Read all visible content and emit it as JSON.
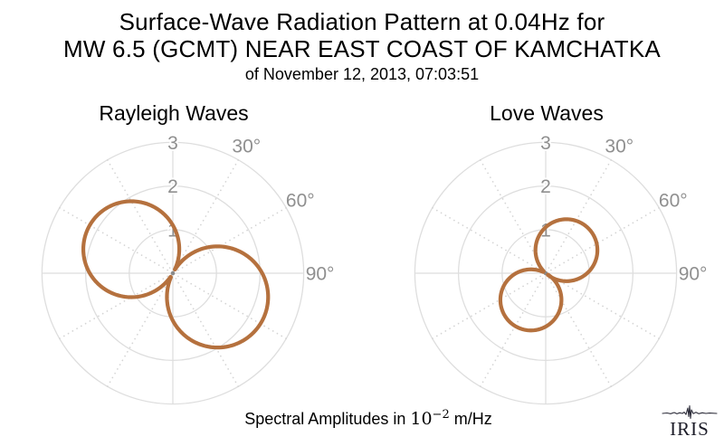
{
  "header": {
    "title_line1": "Surface-Wave Radiation Pattern at 0.04Hz for",
    "title_line2": "MW 6.5 (GCMT) NEAR EAST COAST OF KAMCHATKA",
    "subtitle": "of November 12, 2013, 07:03:51"
  },
  "caption": {
    "prefix": "Spectral Amplitudes in ",
    "unit_base": "10",
    "unit_exponent": "−2",
    "unit_suffix": " m/Hz"
  },
  "logo": {
    "text": "IRIS"
  },
  "colors": {
    "curve": "#b5713e",
    "grid_ring": "#dedede",
    "grid_spoke": "#d4d4d4",
    "tick_label": "#8f8f8f",
    "origin_dot": "#8a8a8a",
    "title_text": "#000000",
    "logo_text": "#1c1c28"
  },
  "chart_data": [
    {
      "type": "line",
      "subtype": "polar-radiation-pattern",
      "title": "Rayleigh Waves",
      "r_ticks": [
        1,
        2,
        3
      ],
      "r_tick_labels": [
        "1",
        "2",
        "3"
      ],
      "rlim": [
        0,
        3
      ],
      "angle_tick_labels": [
        {
          "angle_deg": 30,
          "label": "30°"
        },
        {
          "angle_deg": 60,
          "label": "60°"
        },
        {
          "angle_deg": 90,
          "label": "90°"
        }
      ],
      "spoke_angles_deg": [
        30,
        60,
        120,
        150,
        210,
        240,
        300,
        330
      ],
      "solid_axis_angles_deg": [
        0,
        90,
        180,
        270
      ],
      "lobe_model": "r(θ) = peak · cos(θ − azimuth) for |θ − azimuth| ≤ 90°",
      "lobes": [
        {
          "azimuth_deg": 300,
          "peak_amplitude": 2.2
        },
        {
          "azimuth_deg": 118,
          "peak_amplitude": 2.32
        }
      ],
      "units": "1e-2 m/Hz"
    },
    {
      "type": "line",
      "subtype": "polar-radiation-pattern",
      "title": "Love Waves",
      "r_ticks": [
        1,
        2,
        3
      ],
      "r_tick_labels": [
        "1",
        "2",
        "3"
      ],
      "rlim": [
        0,
        3
      ],
      "angle_tick_labels": [
        {
          "angle_deg": 30,
          "label": "30°"
        },
        {
          "angle_deg": 60,
          "label": "60°"
        },
        {
          "angle_deg": 90,
          "label": "90°"
        }
      ],
      "spoke_angles_deg": [
        30,
        60,
        120,
        150,
        210,
        240,
        300,
        330
      ],
      "solid_axis_angles_deg": [
        0,
        90,
        180,
        270
      ],
      "lobe_model": "r(θ) = peak · cos(θ − azimuth) for |θ − azimuth| ≤ 90°",
      "lobes": [
        {
          "azimuth_deg": 42,
          "peak_amplitude": 1.42
        },
        {
          "azimuth_deg": 209,
          "peak_amplitude": 1.4
        }
      ],
      "units": "1e-2 m/Hz"
    }
  ]
}
